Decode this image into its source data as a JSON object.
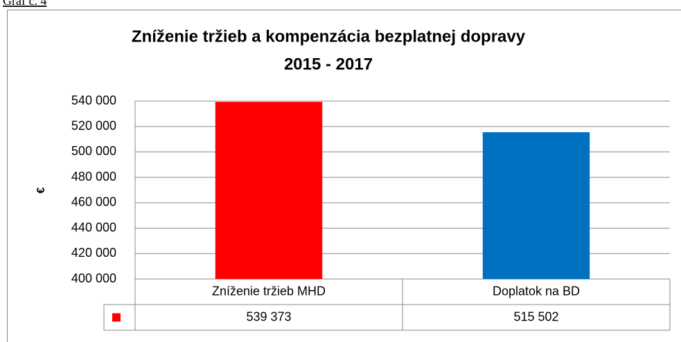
{
  "caption": "Graf č. 4",
  "chart_data": {
    "type": "bar",
    "title": [
      "Zníženie tržieb a kompenzácia bezplatnej dopravy",
      "2015 - 2017"
    ],
    "y_label": "€",
    "categories": [
      "Zníženie tržieb MHD",
      "Doplatok na BD"
    ],
    "values": [
      539373,
      515502
    ],
    "value_labels": [
      "539 373",
      "515 502"
    ],
    "colors": [
      "#ff0000",
      "#0070c0"
    ],
    "ylim": [
      400000,
      540000
    ],
    "yticks": [
      {
        "value": 400000,
        "label": "400 000"
      },
      {
        "value": 420000,
        "label": "420 000"
      },
      {
        "value": 440000,
        "label": "440 000"
      },
      {
        "value": 460000,
        "label": "460 000"
      },
      {
        "value": 480000,
        "label": "480 000"
      },
      {
        "value": 500000,
        "label": "500 000"
      },
      {
        "value": 520000,
        "label": "520 000"
      },
      {
        "value": 540000,
        "label": "540 000"
      }
    ],
    "grid": true
  }
}
